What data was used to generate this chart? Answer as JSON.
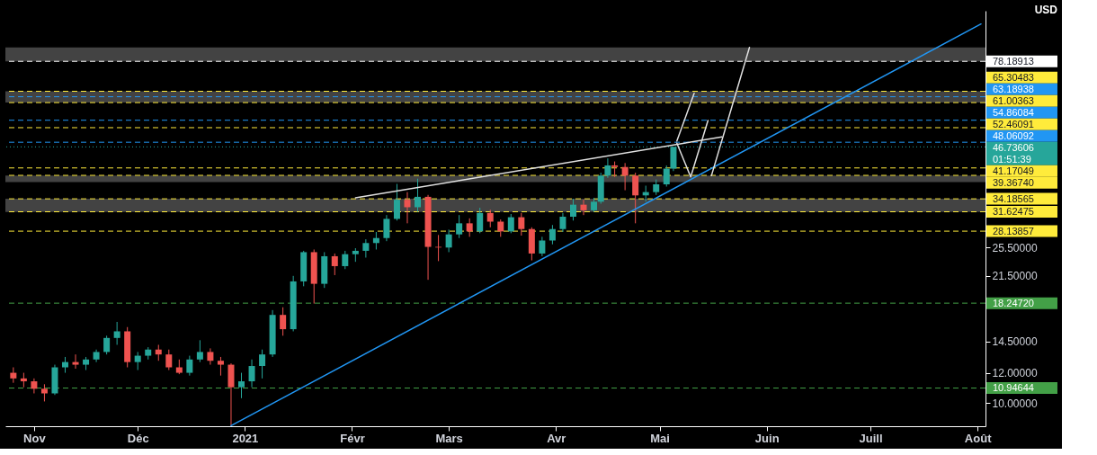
{
  "chart_data": {
    "type": "candlestick",
    "x": [
      "2020-10-26",
      "2020-10-29",
      "2020-11-01",
      "2020-11-04",
      "2020-11-07",
      "2020-11-10",
      "2020-11-13",
      "2020-11-16",
      "2020-11-19",
      "2020-11-22",
      "2020-11-25",
      "2020-11-28",
      "2020-12-01",
      "2020-12-04",
      "2020-12-07",
      "2020-12-10",
      "2020-12-13",
      "2020-12-16",
      "2020-12-19",
      "2020-12-22",
      "2020-12-25",
      "2020-12-28",
      "2020-12-31",
      "2021-01-03",
      "2021-01-06",
      "2021-01-09",
      "2021-01-12",
      "2021-01-15",
      "2021-01-18",
      "2021-01-21",
      "2021-01-24",
      "2021-01-27",
      "2021-01-30",
      "2021-02-02",
      "2021-02-05",
      "2021-02-08",
      "2021-02-11",
      "2021-02-14",
      "2021-02-17",
      "2021-02-20",
      "2021-02-23",
      "2021-02-26",
      "2021-03-01",
      "2021-03-04",
      "2021-03-07",
      "2021-03-10",
      "2021-03-13",
      "2021-03-16",
      "2021-03-19",
      "2021-03-22",
      "2021-03-25",
      "2021-03-28",
      "2021-03-31",
      "2021-04-03",
      "2021-04-06",
      "2021-04-09",
      "2021-04-12",
      "2021-04-14",
      "2021-04-16",
      "2021-04-18",
      "2021-04-21",
      "2021-04-24",
      "2021-04-27",
      "2021-04-30",
      "2021-05-03",
      "2021-05-05"
    ],
    "ohlc": [
      [
        12.0,
        12.4,
        11.3,
        11.6
      ],
      [
        11.6,
        12.0,
        11.0,
        11.4
      ],
      [
        11.4,
        11.6,
        10.6,
        10.9
      ],
      [
        10.9,
        11.2,
        10.1,
        10.6
      ],
      [
        10.6,
        12.6,
        10.5,
        12.4
      ],
      [
        12.4,
        13.2,
        12.0,
        12.8
      ],
      [
        12.8,
        13.4,
        12.3,
        12.6
      ],
      [
        12.6,
        13.2,
        12.2,
        13.0
      ],
      [
        13.0,
        13.8,
        12.8,
        13.6
      ],
      [
        13.6,
        15.0,
        13.4,
        14.8
      ],
      [
        14.8,
        16.3,
        14.2,
        15.4
      ],
      [
        15.4,
        15.8,
        12.4,
        12.8
      ],
      [
        12.8,
        13.6,
        12.2,
        13.3
      ],
      [
        13.3,
        14.0,
        13.0,
        13.8
      ],
      [
        13.8,
        14.2,
        12.9,
        13.4
      ],
      [
        13.4,
        13.8,
        12.2,
        12.4
      ],
      [
        12.4,
        13.0,
        11.9,
        12.0
      ],
      [
        12.0,
        13.3,
        11.8,
        13.0
      ],
      [
        13.0,
        14.6,
        12.8,
        13.6
      ],
      [
        13.6,
        13.9,
        12.6,
        12.9
      ],
      [
        12.9,
        13.2,
        11.8,
        12.6
      ],
      [
        12.6,
        12.7,
        8.73,
        11.0
      ],
      [
        11.0,
        12.0,
        10.3,
        11.4
      ],
      [
        11.4,
        13.0,
        11.0,
        12.5
      ],
      [
        12.5,
        13.8,
        11.6,
        13.4
      ],
      [
        13.4,
        17.5,
        13.2,
        17.0
      ],
      [
        17.0,
        17.8,
        15.0,
        15.6
      ],
      [
        15.6,
        21.5,
        15.4,
        20.8
      ],
      [
        20.8,
        25.0,
        20.2,
        24.8
      ],
      [
        24.8,
        25.2,
        18.2,
        20.5
      ],
      [
        20.5,
        24.8,
        20.0,
        24.2
      ],
      [
        24.2,
        24.6,
        21.6,
        22.8
      ],
      [
        22.8,
        25.0,
        22.4,
        24.5
      ],
      [
        24.5,
        25.4,
        23.4,
        25.0
      ],
      [
        25.0,
        26.8,
        24.0,
        26.2
      ],
      [
        26.2,
        28.0,
        25.2,
        27.0
      ],
      [
        27.0,
        31.0,
        26.5,
        30.3
      ],
      [
        30.3,
        37.4,
        30.0,
        34.0
      ],
      [
        34.0,
        35.6,
        29.5,
        32.5
      ],
      [
        32.5,
        38.6,
        31.6,
        34.6
      ],
      [
        34.6,
        35.0,
        21.0,
        25.6
      ],
      [
        25.6,
        27.5,
        23.5,
        25.5
      ],
      [
        25.5,
        28.4,
        24.8,
        27.6
      ],
      [
        27.6,
        31.0,
        27.0,
        29.5
      ],
      [
        29.5,
        30.4,
        27.2,
        28.1
      ],
      [
        28.1,
        32.4,
        27.8,
        31.4
      ],
      [
        31.4,
        32.0,
        28.8,
        29.8
      ],
      [
        29.8,
        30.2,
        27.2,
        28.1
      ],
      [
        28.1,
        31.2,
        27.8,
        30.6
      ],
      [
        30.6,
        31.4,
        27.4,
        28.5
      ],
      [
        28.5,
        28.8,
        23.6,
        24.6
      ],
      [
        24.6,
        27.2,
        24.2,
        26.6
      ],
      [
        26.6,
        29.2,
        26.0,
        28.5
      ],
      [
        28.5,
        31.4,
        28.0,
        30.7
      ],
      [
        30.7,
        34.2,
        30.0,
        33.0
      ],
      [
        33.0,
        34.0,
        31.0,
        31.9
      ],
      [
        31.9,
        34.4,
        31.6,
        33.6
      ],
      [
        33.6,
        40.0,
        33.2,
        39.3
      ],
      [
        39.3,
        43.6,
        38.8,
        41.8
      ],
      [
        41.8,
        42.8,
        39.0,
        41.4
      ],
      [
        41.4,
        42.4,
        36.0,
        39.3
      ],
      [
        39.3,
        40.0,
        29.5,
        34.9
      ],
      [
        34.9,
        37.0,
        33.6,
        35.6
      ],
      [
        35.6,
        38.4,
        35.0,
        37.3
      ],
      [
        37.3,
        41.8,
        36.8,
        41.0
      ],
      [
        41.0,
        46.74,
        40.4,
        46.73606
      ]
    ],
    "colors": [
      "#ef5350",
      "#ef5350",
      "#ef5350",
      "#ef5350",
      "#26a69a",
      "#26a69a",
      "#ef5350",
      "#26a69a",
      "#26a69a",
      "#26a69a",
      "#26a69a",
      "#ef5350",
      "#26a69a",
      "#26a69a",
      "#ef5350",
      "#ef5350",
      "#ef5350",
      "#26a69a",
      "#26a69a",
      "#ef5350",
      "#ef5350",
      "#ef5350",
      "#26a69a",
      "#26a69a",
      "#26a69a",
      "#26a69a",
      "#ef5350",
      "#26a69a",
      "#26a69a",
      "#ef5350",
      "#26a69a",
      "#ef5350",
      "#26a69a",
      "#26a69a",
      "#26a69a",
      "#26a69a",
      "#26a69a",
      "#26a69a",
      "#ef5350",
      "#26a69a",
      "#ef5350",
      "#ef5350",
      "#26a69a",
      "#26a69a",
      "#ef5350",
      "#26a69a",
      "#ef5350",
      "#ef5350",
      "#26a69a",
      "#ef5350",
      "#ef5350",
      "#26a69a",
      "#26a69a",
      "#26a69a",
      "#26a69a",
      "#ef5350",
      "#26a69a",
      "#26a69a",
      "#26a69a",
      "#ef5350",
      "#ef5350",
      "#ef5350",
      "#26a69a",
      "#26a69a",
      "#26a69a",
      "#26a69a"
    ],
    "xlim": [
      "2020-10-25",
      "2021-08-02"
    ],
    "xticks": [
      {
        "value": "2020-11-01",
        "label": "Nov"
      },
      {
        "value": "2020-12-01",
        "label": "Déc"
      },
      {
        "value": "2021-01-01",
        "label": "2021"
      },
      {
        "value": "2021-02-01",
        "label": "Févr"
      },
      {
        "value": "2021-03-01",
        "label": "Mars"
      },
      {
        "value": "2021-04-01",
        "label": "Avr"
      },
      {
        "value": "2021-05-01",
        "label": "Mai"
      },
      {
        "value": "2021-06-01",
        "label": "Juin"
      },
      {
        "value": "2021-07-01",
        "label": "Juill"
      },
      {
        "value": "2021-08-01",
        "label": "Août"
      }
    ],
    "ylim": [
      8.7,
      106
    ],
    "yticks": [
      {
        "value": 10,
        "label": "10.00000"
      },
      {
        "value": 12,
        "label": "12.00000"
      },
      {
        "value": 14.5,
        "label": "14.50000"
      },
      {
        "value": 21.5,
        "label": "21.50000"
      },
      {
        "value": 25.5,
        "label": "25.50000"
      }
    ],
    "log": true,
    "grid": false,
    "series": [
      {
        "type": "line",
        "color": "#2196f3",
        "x": [
          "2020-12-28",
          "2021-08-02"
        ],
        "values": [
          8.73,
          97.9
        ]
      },
      {
        "type": "line",
        "color": "#e0e0e0",
        "x": [
          "2021-02-02",
          "2021-05-19"
        ],
        "values": [
          34.4,
          49.6
        ]
      },
      {
        "type": "line",
        "color": "#e0e0e0",
        "x": [
          "2021-05-06",
          "2021-05-11"
        ],
        "values": [
          48.4,
          64.5
        ]
      },
      {
        "type": "line",
        "color": "#e0e0e0",
        "x": [
          "2021-05-06",
          "2021-05-10",
          "2021-05-15"
        ],
        "values": [
          47.8,
          39.0,
          54.8
        ]
      },
      {
        "type": "line",
        "color": "#e0e0e0",
        "x": [
          "2021-05-16",
          "2021-05-27"
        ],
        "values": [
          39.3,
          85.0
        ]
      }
    ],
    "bands": [
      {
        "axis": "y",
        "from": 78.2,
        "to": 85.0,
        "color": "#7a7a7a"
      },
      {
        "axis": "y",
        "from": 61.0,
        "to": 65.3,
        "color": "#7a7a7a"
      },
      {
        "axis": "y",
        "from": 37.8,
        "to": 39.3,
        "color": "#7a7a7a"
      },
      {
        "axis": "y",
        "from": 31.6,
        "to": 34.2,
        "color": "#7a7a7a"
      }
    ],
    "ref_lines": [
      {
        "axis": "y",
        "value": 78.18913,
        "label": "78.18913",
        "color": "#ffffff",
        "line_style": "dashed"
      },
      {
        "axis": "y",
        "value": 65.30483,
        "label": "65.30483",
        "color": "#ffeb3b",
        "line_style": "dashed"
      },
      {
        "axis": "y",
        "value": 63.18938,
        "label": "63.18938",
        "color": "#2196f3",
        "line_style": "dashed"
      },
      {
        "axis": "y",
        "value": 61.00363,
        "label": "61.00363",
        "color": "#ffeb3b",
        "line_style": "dashed"
      },
      {
        "axis": "y",
        "value": 54.86084,
        "label": "54.86084",
        "color": "#2196f3",
        "line_style": "dashed"
      },
      {
        "axis": "y",
        "value": 52.46091,
        "label": "52.46091",
        "color": "#ffeb3b",
        "line_style": "dashed"
      },
      {
        "axis": "y",
        "value": 48.06092,
        "label": "48.06092",
        "color": "#2196f3",
        "line_style": "dashed"
      },
      {
        "axis": "y",
        "value": 46.73606,
        "label": "46.73606\n01:51:39",
        "color": "#26a69a",
        "line_style": "dotted"
      },
      {
        "axis": "y",
        "value": 41.17049,
        "label": "41.17049",
        "color": "#ffeb3b",
        "line_style": "dashed"
      },
      {
        "axis": "y",
        "value": 39.3674,
        "label": "39.36740",
        "color": "#ffeb3b",
        "line_style": "dashed"
      },
      {
        "axis": "y",
        "value": 34.18565,
        "label": "34.18565",
        "color": "#ffeb3b",
        "line_style": "dashed"
      },
      {
        "axis": "y",
        "value": 31.62475,
        "label": "31.62475",
        "color": "#ffeb3b",
        "line_style": "dashed"
      },
      {
        "axis": "y",
        "value": 28.13857,
        "label": "28.13857",
        "color": "#ffeb3b",
        "line_style": "dashed"
      },
      {
        "axis": "y",
        "value": 18.2472,
        "label": "18.24720",
        "color": "#43a047",
        "line_style": "dashed"
      },
      {
        "axis": "y",
        "value": 10.94644,
        "label": "10.94644",
        "color": "#43a047",
        "line_style": "dashed"
      }
    ],
    "annotations": [
      "USD"
    ]
  }
}
